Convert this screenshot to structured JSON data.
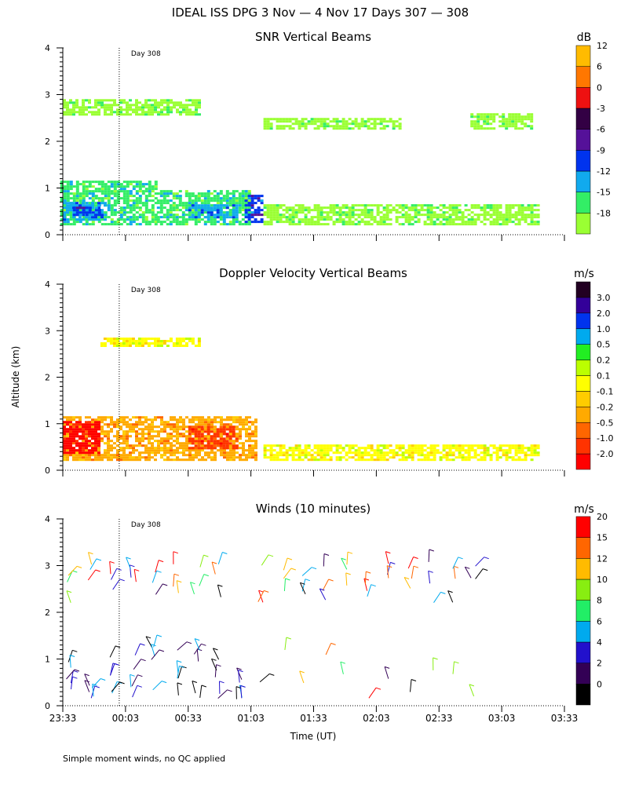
{
  "figure": {
    "title": "IDEAL ISS DPG    3 Nov —  4 Nov 17 Days 307 — 308",
    "footnote": "Simple moment winds, no QC applied",
    "ylabel": "Altitude (km)",
    "xlabel": "Time (UT)",
    "x_ticks": [
      "23:33",
      "00:03",
      "00:33",
      "01:03",
      "01:33",
      "02:03",
      "02:33",
      "03:03",
      "03:33"
    ],
    "y_ticks": [
      "0",
      "1",
      "2",
      "3",
      "4"
    ],
    "day_marker_label": "Day 308"
  },
  "colors": {
    "snr": [
      "#9aff33",
      "#33ee66",
      "#11aaee",
      "#0033ee",
      "#551199",
      "#330044",
      "#ee1111",
      "#ff7700",
      "#ffbb00"
    ],
    "doppler": [
      "#ff0000",
      "#ff3300",
      "#ff6600",
      "#ffaa00",
      "#ffcc00",
      "#ffff00",
      "#bbff00",
      "#22ee22",
      "#00aaee",
      "#0033ee",
      "#330099",
      "#220022"
    ],
    "winds": [
      "#000000",
      "#330055",
      "#2211cc",
      "#00aaee",
      "#22ee66",
      "#88ee11",
      "#ffbb00",
      "#ff6600",
      "#ff0000"
    ]
  },
  "chart_data": [
    {
      "type": "heatmap",
      "title": "SNR Vertical Beams",
      "xlabel": "Time (UT)",
      "ylabel": "Altitude (km)",
      "ylim": [
        0,
        4
      ],
      "x_range": [
        "23:33",
        "03:33"
      ],
      "colorbar_unit": "dB",
      "colorbar_labels": [
        "-18",
        "-15",
        "-12",
        "-9",
        "-6",
        "-3",
        "0",
        "6",
        "12"
      ],
      "regions": [
        {
          "t_start": -0.1,
          "t_end": 0.75,
          "alt_min": 0.25,
          "alt_max": 1.2,
          "level": 1
        },
        {
          "t_start": 0.0,
          "t_end": 0.35,
          "alt_min": 0.35,
          "alt_max": 0.75,
          "level": 2
        },
        {
          "t_start": 0.08,
          "t_end": 0.3,
          "alt_min": 0.45,
          "alt_max": 0.65,
          "level": 3
        },
        {
          "t_start": 0.75,
          "t_end": 1.5,
          "alt_min": 0.25,
          "alt_max": 1.0,
          "level": 1
        },
        {
          "t_start": 1.45,
          "t_end": 1.58,
          "alt_min": 0.3,
          "alt_max": 0.9,
          "level": 3
        },
        {
          "t_start": 1.0,
          "t_end": 1.4,
          "alt_min": 0.4,
          "alt_max": 0.7,
          "level": 2
        },
        {
          "t_start": 0.0,
          "t_end": 1.1,
          "alt_min": 2.6,
          "alt_max": 2.95,
          "level": 0
        },
        {
          "t_start": 3.25,
          "t_end": 3.75,
          "alt_min": 2.3,
          "alt_max": 2.65,
          "level": 0
        },
        {
          "t_start": 1.6,
          "t_end": 2.7,
          "alt_min": 2.3,
          "alt_max": 2.55,
          "level": 0
        },
        {
          "t_start": 1.6,
          "t_end": 3.8,
          "alt_min": 0.25,
          "alt_max": 0.7,
          "level": 0
        }
      ],
      "day_marker": {
        "label": "Day 308",
        "time": "00:00"
      }
    },
    {
      "type": "heatmap",
      "title": "Doppler Velocity Vertical Beams",
      "xlabel": "Time (UT)",
      "ylabel": "Altitude (km)",
      "ylim": [
        0,
        4
      ],
      "x_range": [
        "23:33",
        "03:33"
      ],
      "colorbar_unit": "m/s",
      "colorbar_labels": [
        "-2.0",
        "-1.0",
        "-0.5",
        "-0.2",
        "-0.1",
        "0.1",
        "0.2",
        "0.5",
        "1.0",
        "2.0",
        "3.0"
      ],
      "regions": [
        {
          "t_start": 0.0,
          "t_end": 1.55,
          "alt_min": 0.25,
          "alt_max": 1.2,
          "level": 3
        },
        {
          "t_start": 0.0,
          "t_end": 0.3,
          "alt_min": 0.4,
          "alt_max": 1.1,
          "level": 0
        },
        {
          "t_start": 1.0,
          "t_end": 1.4,
          "alt_min": 0.5,
          "alt_max": 1.0,
          "level": 1
        },
        {
          "t_start": 0.3,
          "t_end": 1.1,
          "alt_min": 2.7,
          "alt_max": 2.9,
          "level": 5
        },
        {
          "t_start": 1.6,
          "t_end": 3.8,
          "alt_min": 0.25,
          "alt_max": 0.6,
          "level": 5
        }
      ],
      "day_marker": {
        "label": "Day 308",
        "time": "00:00"
      }
    },
    {
      "type": "scatter",
      "title": "Winds (10 minutes)",
      "xlabel": "Time (UT)",
      "ylabel": "Altitude (km)",
      "ylim": [
        0,
        4
      ],
      "x_range": [
        "23:33",
        "03:33"
      ],
      "colorbar_unit": "m/s",
      "colorbar_labels": [
        "0",
        "2",
        "4",
        "6",
        "8",
        "10",
        "12",
        "15",
        "20"
      ],
      "marker": "wind barbs",
      "lower_layer_alt_km": [
        0.1,
        1.3
      ],
      "upper_layer_alt_km": [
        2.2,
        3.1
      ],
      "day_marker": {
        "label": "Day 308",
        "time": "00:00"
      }
    }
  ]
}
